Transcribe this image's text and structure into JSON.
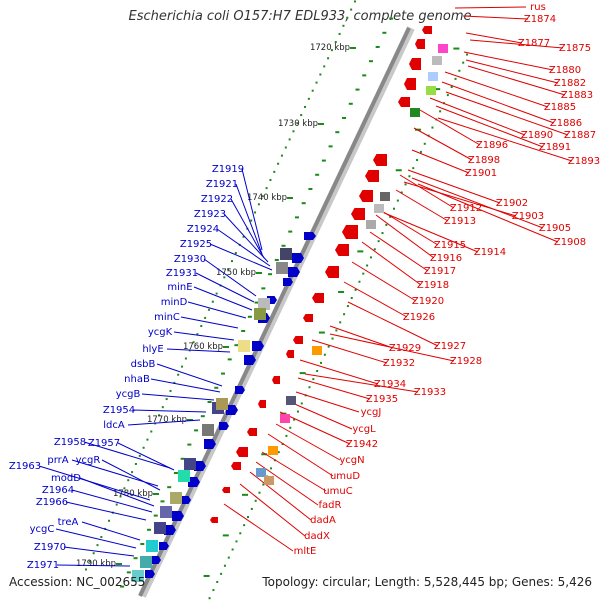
{
  "title": "Escherichia coli O157:H7 EDL933, complete genome",
  "accession_text": "Accession: NC_002655",
  "summary_text": "Topology: circular; Length: 5,528,445 bp; Genes: 5,426",
  "colors": {
    "forward_gene": "#e00000",
    "reverse_gene": "#0000c8",
    "backbone": "#888888",
    "tick": "#1a8a1a"
  },
  "kbp_labels": [
    "1720 kbp",
    "1730 kbp",
    "1740 kbp",
    "1750 kbp",
    "1760 kbp",
    "1770 kbp",
    "1780 kbp",
    "1790 kbp"
  ],
  "forward_genes": [
    "rus",
    "Z1874",
    "Z1877",
    "Z1875",
    "Z1880",
    "Z1882",
    "Z1883",
    "Z1885",
    "Z1886",
    "Z1887",
    "Z1890",
    "Z1891",
    "Z1893",
    "Z1896",
    "Z1898",
    "Z1901",
    "Z1902",
    "Z1912",
    "Z1903",
    "Z1913",
    "Z1905",
    "Z1908",
    "Z1915",
    "Z1916",
    "Z1914",
    "Z1917",
    "Z1918",
    "Z1920",
    "Z1926",
    "Z1927",
    "Z1929",
    "Z1928",
    "Z1932",
    "Z1934",
    "Z1933",
    "Z1935",
    "ycgJ",
    "ycgL",
    "Z1942",
    "ycgN",
    "umuD",
    "umuC",
    "fadR",
    "dadA",
    "dadX",
    "mltE"
  ],
  "reverse_genes": [
    "Z1919",
    "Z1921",
    "Z1922",
    "Z1923",
    "Z1924",
    "Z1925",
    "Z1930",
    "Z1931",
    "minE",
    "minD",
    "minC",
    "ycgK",
    "hlyE",
    "dsbB",
    "nhaB",
    "ycgB",
    "Z1954",
    "ldcA",
    "Z1958",
    "Z1957",
    "prrA",
    "ycgR",
    "Z1963",
    "modD",
    "Z1964",
    "Z1966",
    "treA",
    "ycgC",
    "Z1970",
    "Z1971"
  ]
}
